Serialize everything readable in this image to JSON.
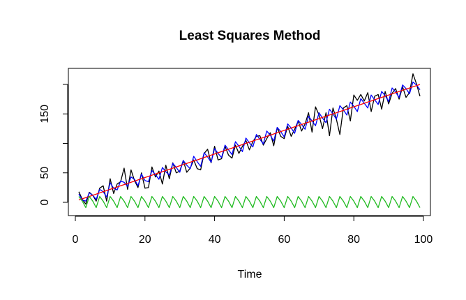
{
  "chart_data": {
    "type": "line",
    "title": "Least Squares Method",
    "xlabel": "Time",
    "ylabel": "",
    "xlim": [
      1,
      99
    ],
    "ylim": [
      -12,
      212
    ],
    "xticks": [
      0,
      20,
      40,
      60,
      80,
      100
    ],
    "yticks": [
      0,
      50,
      100,
      150,
      200
    ],
    "ytick_labels": [
      "0",
      "50",
      "",
      "150",
      ""
    ],
    "grid": false,
    "series": [
      {
        "color": "#000000",
        "values": [
          18,
          5,
          -3,
          17,
          12,
          2,
          24,
          28,
          2,
          40,
          15,
          31,
          35,
          58,
          22,
          55,
          37,
          25,
          50,
          24,
          25,
          60,
          43,
          53,
          31,
          63,
          40,
          67,
          50,
          53,
          71,
          51,
          58,
          72,
          57,
          55,
          83,
          90,
          67,
          95,
          72,
          74,
          95,
          80,
          75,
          97,
          83,
          95,
          105,
          89,
          103,
          112,
          113,
          97,
          108,
          118,
          96,
          127,
          112,
          108,
          129,
          112,
          124,
          138,
          121,
          133,
          152,
          119,
          162,
          148,
          125,
          152,
          113,
          160,
          141,
          115,
          160,
          164,
          138,
          182,
          173,
          183,
          172,
          186,
          154,
          180,
          183,
          158,
          188,
          167,
          185,
          193,
          175,
          196,
          178,
          186,
          218,
          201,
          180
        ]
      },
      {
        "color": "#0000ff",
        "values": [
          14,
          4,
          2,
          16,
          12,
          5,
          22,
          18,
          9,
          33,
          24,
          21,
          36,
          34,
          27,
          43,
          39,
          28,
          48,
          37,
          35,
          54,
          47,
          39,
          59,
          52,
          46,
          66,
          59,
          51,
          71,
          63,
          57,
          78,
          69,
          61,
          84,
          77,
          68,
          91,
          83,
          76,
          97,
          89,
          81,
          103,
          95,
          86,
          109,
          101,
          94,
          115,
          107,
          99,
          121,
          114,
          104,
          127,
          120,
          111,
          133,
          126,
          117,
          139,
          132,
          124,
          146,
          138,
          130,
          152,
          143,
          135,
          158,
          150,
          141,
          164,
          157,
          148,
          170,
          163,
          154,
          176,
          168,
          160,
          182,
          174,
          166,
          188,
          181,
          171,
          194,
          187,
          178,
          199,
          193,
          184,
          204,
          199,
          191
        ]
      },
      {
        "color": "#ff0000",
        "values": [
          4,
          6,
          8,
          10,
          12,
          14,
          16,
          18,
          20,
          22,
          24,
          26,
          28,
          30,
          32,
          34,
          36,
          38,
          40,
          42,
          44,
          46,
          48,
          50,
          52,
          54,
          56,
          58,
          60,
          62,
          64,
          66,
          68,
          70,
          72,
          74,
          76,
          78,
          80,
          82,
          84,
          86,
          88,
          90,
          92,
          94,
          96,
          98,
          100,
          102,
          104,
          106,
          108,
          110,
          112,
          114,
          116,
          118,
          120,
          122,
          124,
          126,
          128,
          130,
          132,
          134,
          136,
          138,
          140,
          142,
          144,
          146,
          148,
          150,
          152,
          154,
          156,
          158,
          160,
          162,
          164,
          166,
          168,
          170,
          172,
          174,
          176,
          178,
          180,
          182,
          184,
          186,
          188,
          190,
          192,
          194,
          196,
          198,
          200
        ]
      },
      {
        "color": "#22bb22",
        "values": [
          10,
          2,
          -9,
          10,
          2,
          -9,
          10,
          2,
          -9,
          10,
          2,
          -9,
          10,
          2,
          -9,
          10,
          2,
          -9,
          10,
          2,
          -9,
          10,
          2,
          -9,
          10,
          2,
          -9,
          10,
          2,
          -9,
          10,
          2,
          -9,
          10,
          2,
          -9,
          10,
          2,
          -9,
          10,
          2,
          -9,
          10,
          2,
          -9,
          10,
          2,
          -9,
          10,
          2,
          -9,
          10,
          2,
          -9,
          10,
          2,
          -9,
          10,
          2,
          -9,
          10,
          2,
          -9,
          10,
          2,
          -9,
          10,
          2,
          -9,
          10,
          2,
          -9,
          10,
          2,
          -9,
          10,
          2,
          -9,
          10,
          2,
          -9,
          10,
          2,
          -9,
          10,
          2,
          -9,
          10,
          2,
          -9,
          10,
          2,
          -9,
          10,
          2,
          -9,
          10,
          2,
          -9
        ]
      }
    ]
  }
}
